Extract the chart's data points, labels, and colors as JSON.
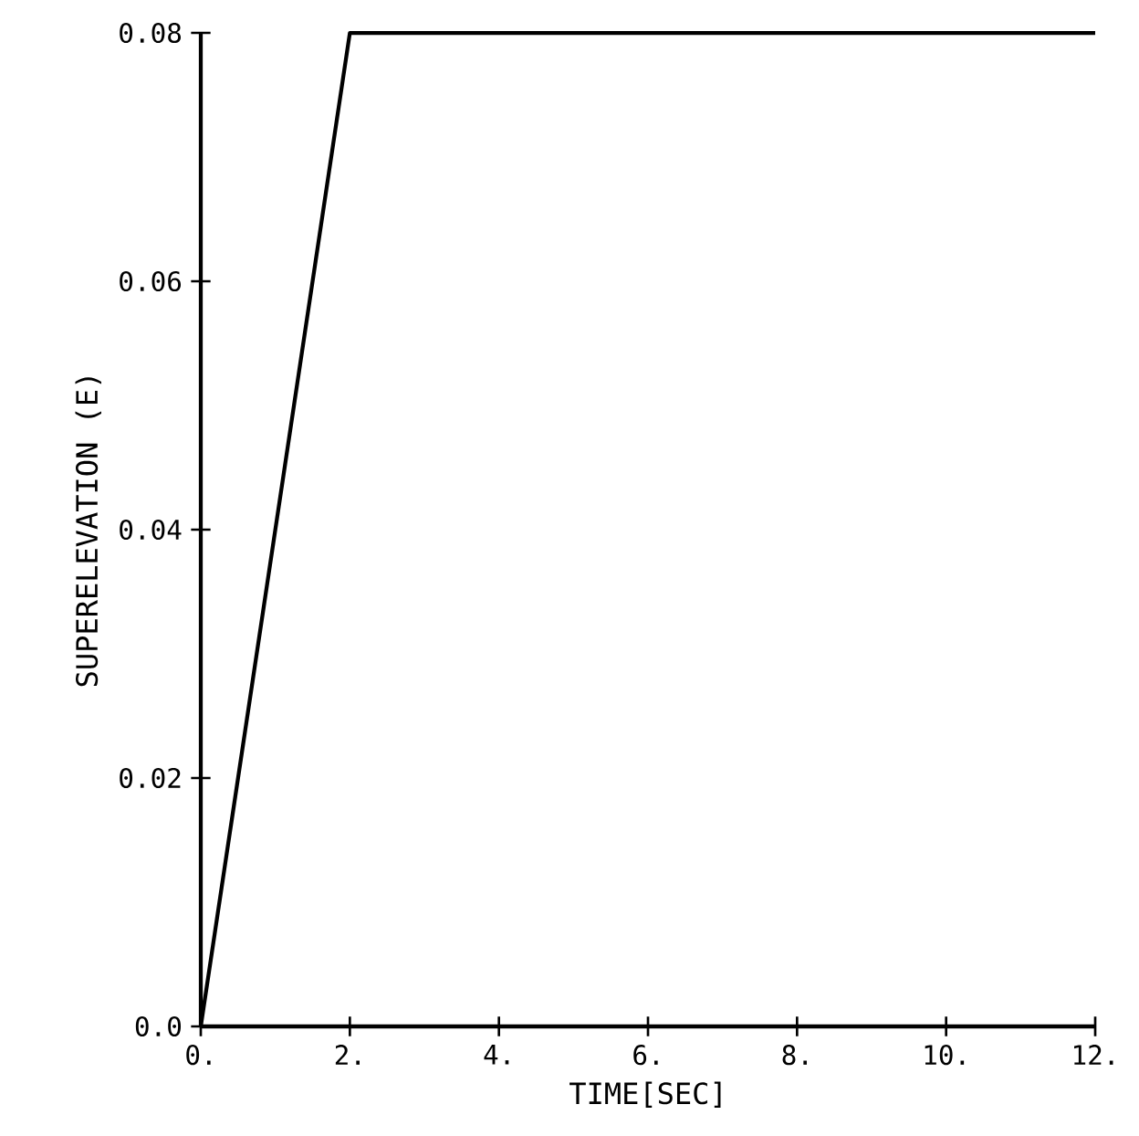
{
  "chart_data": {
    "type": "line",
    "xlabel": "TIME[SEC]",
    "ylabel": "SUPERELEVATION (E)",
    "x": [
      0,
      2,
      12
    ],
    "series": [
      {
        "color": "#000000",
        "values": [
          0,
          0.08,
          0.08
        ]
      }
    ],
    "xlim": [
      0,
      12
    ],
    "ylim": [
      0,
      0.08
    ],
    "xticks": [
      {
        "value": 0,
        "label": "0."
      },
      {
        "value": 2,
        "label": "2."
      },
      {
        "value": 4,
        "label": "4."
      },
      {
        "value": 6,
        "label": "6."
      },
      {
        "value": 8,
        "label": "8."
      },
      {
        "value": 10,
        "label": "10."
      },
      {
        "value": 12,
        "label": "12."
      }
    ],
    "yticks": [
      {
        "value": 0,
        "label": "0.0"
      },
      0.02,
      0.04,
      0.06,
      0.08
    ]
  }
}
